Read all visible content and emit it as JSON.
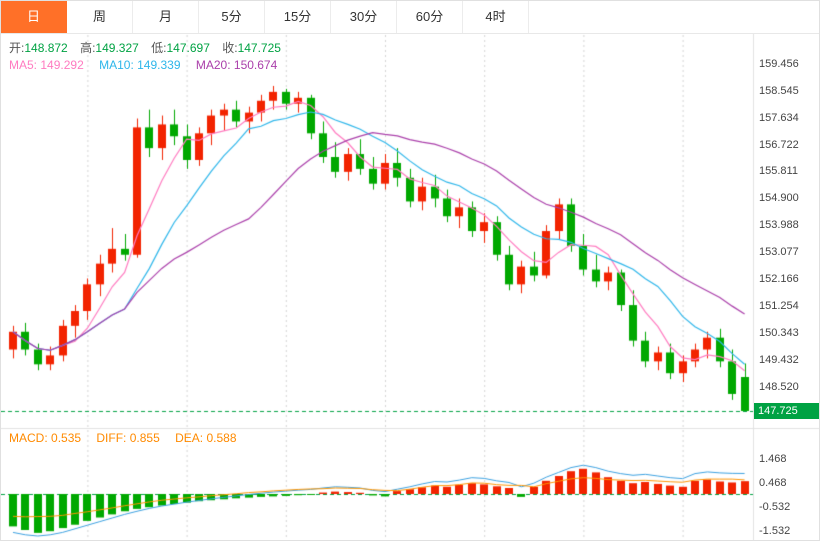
{
  "tabs": {
    "items": [
      {
        "label": "日",
        "active": true
      },
      {
        "label": "周",
        "active": false
      },
      {
        "label": "月",
        "active": false
      },
      {
        "label": "5分",
        "active": false
      },
      {
        "label": "15分",
        "active": false
      },
      {
        "label": "30分",
        "active": false
      },
      {
        "label": "60分",
        "active": false
      },
      {
        "label": "4时",
        "active": false
      }
    ]
  },
  "ohlc": {
    "open_label": "开:",
    "open": "148.872",
    "high_label": "高:",
    "high": "149.327",
    "low_label": "低:",
    "low": "147.697",
    "close_label": "收:",
    "close": "147.725"
  },
  "ma": {
    "ma5_label": "MA5:",
    "ma5": "149.292",
    "ma10_label": "MA10:",
    "ma10": "149.339",
    "ma20_label": "MA20:",
    "ma20": "150.674"
  },
  "macd_header": {
    "macd_label": "MACD:",
    "macd": "0.535",
    "diff_label": "DIFF:",
    "diff": "0.855",
    "dea_label": "DEA:",
    "dea": "0.588"
  },
  "colors": {
    "accent": "#ff7028",
    "up": "#f22300",
    "down": "#00a800",
    "ma5": "#ff7bc0",
    "ma10": "#2eb6ea",
    "ma20": "#aa3faa",
    "diff_line": "#3aa0e0",
    "dea_line": "#ff9500",
    "tag": "#00a243",
    "orange_text": "#ff8a00",
    "dashed": "#00a243",
    "grid": "#d4d4d4",
    "axis_text": "#444444",
    "border": "#e2e2e2"
  },
  "chart_data": {
    "main": {
      "type": "candlestick",
      "y_ticks": [
        "159.456",
        "158.545",
        "157.634",
        "156.722",
        "155.811",
        "154.900",
        "153.988",
        "153.077",
        "152.166",
        "151.254",
        "150.343",
        "149.432",
        "148.520"
      ],
      "y_range": [
        147.15,
        160.42
      ],
      "last_price": "147.725",
      "grid": "vertical-dotted",
      "legend_position": "top-left-overlay",
      "overlays": [
        {
          "name": "MA5",
          "period": 5,
          "color": "#ff7bc0"
        },
        {
          "name": "MA10",
          "period": 10,
          "color": "#2eb6ea"
        },
        {
          "name": "MA20",
          "period": 20,
          "color": "#aa3faa"
        }
      ],
      "candles": [
        [
          149.8,
          150.6,
          149.5,
          150.4
        ],
        [
          150.4,
          150.7,
          149.6,
          149.8
        ],
        [
          149.8,
          150.0,
          149.1,
          149.3
        ],
        [
          149.3,
          149.9,
          149.1,
          149.6
        ],
        [
          149.6,
          150.8,
          149.4,
          150.6
        ],
        [
          150.6,
          151.3,
          150.2,
          151.1
        ],
        [
          151.1,
          152.2,
          150.8,
          152.0
        ],
        [
          152.0,
          153.0,
          151.6,
          152.7
        ],
        [
          152.7,
          153.9,
          152.4,
          153.2
        ],
        [
          153.2,
          153.7,
          152.8,
          153.0
        ],
        [
          153.0,
          157.6,
          152.9,
          157.3
        ],
        [
          157.3,
          157.9,
          156.3,
          156.6
        ],
        [
          156.6,
          157.7,
          156.2,
          157.4
        ],
        [
          157.4,
          157.9,
          156.7,
          157.0
        ],
        [
          157.0,
          157.4,
          155.9,
          156.2
        ],
        [
          156.2,
          157.3,
          156.0,
          157.1
        ],
        [
          157.1,
          157.9,
          156.7,
          157.7
        ],
        [
          157.7,
          158.1,
          157.2,
          157.9
        ],
        [
          157.9,
          158.2,
          157.3,
          157.5
        ],
        [
          157.5,
          158.0,
          157.1,
          157.8
        ],
        [
          157.8,
          158.4,
          157.5,
          158.2
        ],
        [
          158.2,
          158.7,
          157.9,
          158.5
        ],
        [
          158.5,
          158.6,
          157.9,
          158.1
        ],
        [
          158.1,
          158.5,
          157.8,
          158.3
        ],
        [
          158.3,
          158.4,
          156.9,
          157.1
        ],
        [
          157.1,
          157.5,
          156.1,
          156.3
        ],
        [
          156.3,
          156.8,
          155.6,
          155.8
        ],
        [
          155.8,
          156.6,
          155.5,
          156.4
        ],
        [
          156.4,
          156.9,
          155.7,
          155.9
        ],
        [
          155.9,
          156.3,
          155.2,
          155.4
        ],
        [
          155.4,
          156.4,
          155.2,
          156.1
        ],
        [
          156.1,
          156.6,
          155.3,
          155.6
        ],
        [
          155.6,
          155.9,
          154.6,
          154.8
        ],
        [
          154.8,
          155.6,
          154.5,
          155.3
        ],
        [
          155.3,
          155.7,
          154.6,
          154.9
        ],
        [
          154.9,
          155.2,
          154.1,
          154.3
        ],
        [
          154.3,
          154.9,
          153.9,
          154.6
        ],
        [
          154.6,
          154.8,
          153.6,
          153.8
        ],
        [
          153.8,
          154.4,
          153.4,
          154.1
        ],
        [
          154.1,
          154.3,
          152.8,
          153.0
        ],
        [
          153.0,
          153.3,
          151.8,
          152.0
        ],
        [
          152.0,
          152.8,
          151.7,
          152.6
        ],
        [
          152.6,
          153.1,
          152.1,
          152.3
        ],
        [
          152.3,
          154.0,
          152.2,
          153.8
        ],
        [
          153.8,
          154.9,
          153.5,
          154.7
        ],
        [
          154.7,
          154.9,
          153.1,
          153.3
        ],
        [
          153.3,
          153.7,
          152.3,
          152.5
        ],
        [
          152.5,
          153.0,
          151.9,
          152.1
        ],
        [
          152.1,
          152.6,
          151.8,
          152.4
        ],
        [
          152.4,
          152.5,
          151.1,
          151.3
        ],
        [
          151.3,
          151.8,
          149.9,
          150.1
        ],
        [
          150.1,
          150.4,
          149.2,
          149.4
        ],
        [
          149.4,
          149.9,
          149.1,
          149.7
        ],
        [
          149.7,
          150.0,
          148.8,
          149.0
        ],
        [
          149.0,
          149.6,
          148.7,
          149.4
        ],
        [
          149.4,
          150.0,
          149.2,
          149.8
        ],
        [
          149.8,
          150.4,
          149.5,
          150.2
        ],
        [
          150.2,
          150.5,
          149.2,
          149.4
        ],
        [
          149.4,
          149.8,
          148.1,
          148.3
        ],
        [
          148.872,
          149.327,
          147.697,
          147.725
        ]
      ]
    },
    "macd": {
      "type": "bar",
      "y_ticks": [
        "1.468",
        "0.468",
        "-0.532",
        "-1.532"
      ],
      "y_range": [
        -1.875,
        1.875
      ],
      "hist": [
        -1.35,
        -1.5,
        -1.62,
        -1.55,
        -1.42,
        -1.28,
        -1.12,
        -0.98,
        -0.85,
        -0.72,
        -0.62,
        -0.55,
        -0.48,
        -0.42,
        -0.36,
        -0.3,
        -0.26,
        -0.22,
        -0.18,
        -0.15,
        -0.12,
        -0.1,
        -0.08,
        -0.05,
        -0.03,
        0.06,
        0.1,
        0.08,
        0.05,
        -0.06,
        -0.1,
        0.12,
        0.2,
        0.28,
        0.35,
        0.3,
        0.38,
        0.45,
        0.4,
        0.32,
        0.25,
        -0.12,
        0.3,
        0.55,
        0.75,
        0.95,
        1.05,
        0.9,
        0.7,
        0.55,
        0.45,
        0.5,
        0.42,
        0.35,
        0.3,
        0.55,
        0.6,
        0.52,
        0.48,
        0.535
      ],
      "diff": [
        -1.6,
        -1.7,
        -1.75,
        -1.7,
        -1.6,
        -1.45,
        -1.3,
        -1.15,
        -1.0,
        -0.85,
        -0.72,
        -0.6,
        -0.5,
        -0.42,
        -0.34,
        -0.27,
        -0.2,
        -0.14,
        -0.08,
        -0.02,
        0.03,
        0.08,
        0.12,
        0.16,
        0.19,
        0.25,
        0.3,
        0.28,
        0.25,
        0.15,
        0.1,
        0.2,
        0.3,
        0.42,
        0.52,
        0.5,
        0.58,
        0.68,
        0.65,
        0.55,
        0.48,
        0.3,
        0.45,
        0.7,
        0.9,
        1.1,
        1.2,
        1.1,
        0.95,
        0.85,
        0.78,
        0.82,
        0.75,
        0.68,
        0.64,
        0.85,
        0.92,
        0.88,
        0.86,
        0.855
      ],
      "dea": [
        -0.93,
        -0.95,
        -0.94,
        -0.93,
        -0.89,
        -0.81,
        -0.74,
        -0.66,
        -0.58,
        -0.49,
        -0.41,
        -0.33,
        -0.26,
        -0.21,
        -0.16,
        -0.12,
        -0.07,
        -0.03,
        0.01,
        0.06,
        0.09,
        0.13,
        0.16,
        0.19,
        0.21,
        0.22,
        0.25,
        0.24,
        0.23,
        0.18,
        0.15,
        0.14,
        0.2,
        0.28,
        0.35,
        0.35,
        0.39,
        0.46,
        0.45,
        0.39,
        0.36,
        0.36,
        0.3,
        0.43,
        0.53,
        0.63,
        0.68,
        0.65,
        0.6,
        0.58,
        0.56,
        0.57,
        0.54,
        0.51,
        0.49,
        0.58,
        0.62,
        0.62,
        0.62,
        0.588
      ]
    }
  }
}
